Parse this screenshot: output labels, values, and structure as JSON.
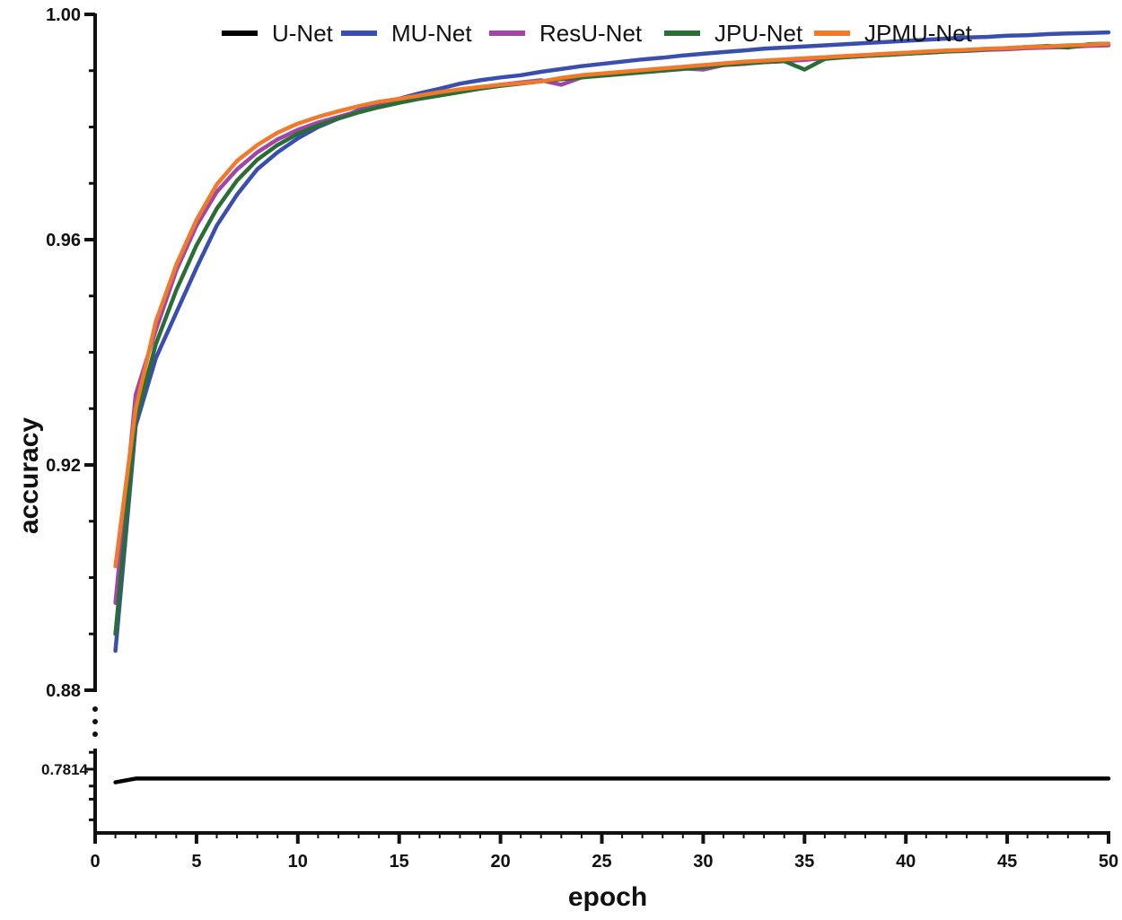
{
  "chart_data": {
    "type": "line",
    "xlabel": "epoch",
    "ylabel": "accuracy",
    "xlim": [
      0,
      50
    ],
    "ylim_upper": [
      0.88,
      1.0
    ],
    "ylim_lower": [
      0.778,
      0.7825
    ],
    "broken_axis": true,
    "grid": false,
    "legend_position": "top",
    "x_ticks": [
      0,
      5,
      10,
      15,
      20,
      25,
      30,
      35,
      40,
      45,
      50
    ],
    "x_tick_labels": [
      "0",
      "5",
      "10",
      "15",
      "20",
      "25",
      "30",
      "35",
      "40",
      "45",
      "50"
    ],
    "y_ticks_upper": [
      1.0,
      0.96,
      0.92,
      0.88
    ],
    "y_tick_labels_upper": [
      "1.00",
      "0.96",
      "0.92",
      "0.88"
    ],
    "y_minor_ticks_upper": [
      0.99,
      0.98,
      0.97,
      0.95,
      0.94,
      0.93,
      0.91,
      0.9,
      0.89
    ],
    "y_special_label": "0.7814",
    "y_special_value": 0.7814,
    "y_minor_ticks_lower": [
      0.7823,
      0.7805,
      0.7798,
      0.7787
    ],
    "series": [
      {
        "name": "U-Net",
        "color": "#000000",
        "x": [
          1,
          2,
          50
        ],
        "y": [
          0.7807,
          0.7809,
          0.7809
        ]
      },
      {
        "name": "MU-Net",
        "color": "#3a4fad",
        "x": [
          1,
          2,
          3,
          4,
          5,
          6,
          7,
          8,
          9,
          10,
          11,
          12,
          13,
          14,
          15,
          16,
          17,
          18,
          19,
          20,
          21,
          22,
          23,
          24,
          25,
          26,
          27,
          28,
          29,
          30,
          31,
          32,
          33,
          34,
          35,
          36,
          37,
          38,
          39,
          40,
          41,
          42,
          43,
          44,
          45,
          46,
          47,
          48,
          49,
          50
        ],
        "y": [
          0.887,
          0.927,
          0.939,
          0.947,
          0.955,
          0.9625,
          0.968,
          0.9725,
          0.9755,
          0.978,
          0.98,
          0.9815,
          0.983,
          0.984,
          0.985,
          0.986,
          0.9868,
          0.9877,
          0.9883,
          0.9888,
          0.9892,
          0.9898,
          0.9903,
          0.9908,
          0.9912,
          0.9916,
          0.992,
          0.9923,
          0.9927,
          0.993,
          0.9933,
          0.9936,
          0.9939,
          0.9941,
          0.9943,
          0.9945,
          0.9947,
          0.9949,
          0.9951,
          0.9953,
          0.9955,
          0.9957,
          0.9959,
          0.996,
          0.9962,
          0.9963,
          0.9965,
          0.9966,
          0.9967,
          0.9968
        ]
      },
      {
        "name": "ResU-Net",
        "color": "#a046a8",
        "x": [
          1,
          2,
          3,
          4,
          5,
          6,
          7,
          8,
          9,
          10,
          11,
          12,
          13,
          14,
          15,
          16,
          17,
          18,
          19,
          20,
          21,
          22,
          23,
          24,
          25,
          26,
          27,
          28,
          29,
          30,
          31,
          32,
          33,
          34,
          35,
          36,
          37,
          38,
          39,
          40,
          41,
          42,
          43,
          44,
          45,
          46,
          47,
          48,
          49,
          50
        ],
        "y": [
          0.8955,
          0.9325,
          0.944,
          0.9545,
          0.9625,
          0.9685,
          0.9725,
          0.9755,
          0.9778,
          0.9795,
          0.9808,
          0.9818,
          0.9828,
          0.9837,
          0.9845,
          0.9852,
          0.9858,
          0.9864,
          0.987,
          0.9875,
          0.9879,
          0.9883,
          0.9875,
          0.9888,
          0.9892,
          0.9895,
          0.9898,
          0.9901,
          0.9904,
          0.9902,
          0.991,
          0.9912,
          0.9915,
          0.9917,
          0.9919,
          0.9922,
          0.9924,
          0.9926,
          0.9928,
          0.993,
          0.9932,
          0.9934,
          0.9935,
          0.9937,
          0.9938,
          0.994,
          0.9941,
          0.9942,
          0.9944,
          0.9945
        ]
      },
      {
        "name": "JPU-Net",
        "color": "#2a6e35",
        "x": [
          1,
          2,
          3,
          4,
          5,
          6,
          7,
          8,
          9,
          10,
          11,
          12,
          13,
          14,
          15,
          16,
          17,
          18,
          19,
          20,
          21,
          22,
          23,
          24,
          25,
          26,
          27,
          28,
          29,
          30,
          31,
          32,
          33,
          34,
          35,
          36,
          37,
          38,
          39,
          40,
          41,
          42,
          43,
          44,
          45,
          46,
          47,
          48,
          49,
          50
        ],
        "y": [
          0.89,
          0.928,
          0.9415,
          0.951,
          0.959,
          0.9655,
          0.9705,
          0.9742,
          0.9768,
          0.9788,
          0.9803,
          0.9815,
          0.9826,
          0.9835,
          0.9843,
          0.985,
          0.9856,
          0.9862,
          0.9868,
          0.9873,
          0.9877,
          0.9881,
          0.9885,
          0.9888,
          0.9891,
          0.9894,
          0.9897,
          0.99,
          0.9903,
          0.9906,
          0.991,
          0.9913,
          0.9915,
          0.9917,
          0.9902,
          0.9921,
          0.9924,
          0.9926,
          0.9928,
          0.993,
          0.9932,
          0.9934,
          0.9936,
          0.9938,
          0.994,
          0.9942,
          0.9944,
          0.9941,
          0.9947,
          0.9948
        ]
      },
      {
        "name": "JPMU-Net",
        "color": "#f07a2a",
        "x": [
          1,
          2,
          3,
          4,
          5,
          6,
          7,
          8,
          9,
          10,
          11,
          12,
          13,
          14,
          15,
          16,
          17,
          18,
          19,
          20,
          21,
          22,
          23,
          24,
          25,
          26,
          27,
          28,
          29,
          30,
          31,
          32,
          33,
          34,
          35,
          36,
          37,
          38,
          39,
          40,
          41,
          42,
          43,
          44,
          45,
          46,
          47,
          48,
          49,
          50
        ],
        "y": [
          0.902,
          0.93,
          0.9455,
          0.9555,
          0.9635,
          0.9698,
          0.974,
          0.9768,
          0.979,
          0.9806,
          0.9818,
          0.9828,
          0.9837,
          0.9845,
          0.985,
          0.9856,
          0.9862,
          0.9867,
          0.9871,
          0.9875,
          0.9878,
          0.9881,
          0.9887,
          0.9892,
          0.9895,
          0.9898,
          0.9901,
          0.9904,
          0.9907,
          0.991,
          0.9913,
          0.9916,
          0.9918,
          0.992,
          0.9922,
          0.9924,
          0.9926,
          0.9928,
          0.993,
          0.9932,
          0.9934,
          0.9936,
          0.9937,
          0.9939,
          0.994,
          0.9942,
          0.9943,
          0.9945,
          0.9946,
          0.9948
        ]
      }
    ]
  }
}
